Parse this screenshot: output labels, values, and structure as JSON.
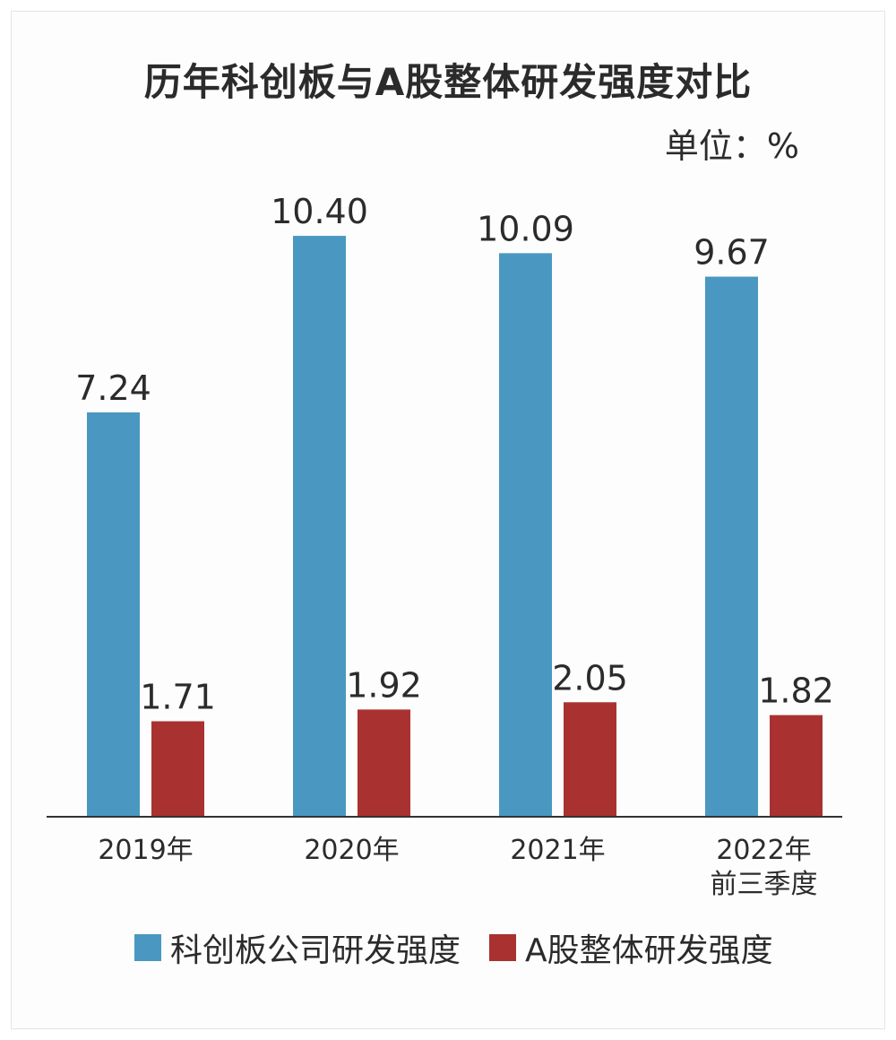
{
  "chart_data": {
    "type": "bar",
    "title": "历年科创板与A股整体研发强度对比",
    "unit_label": "单位：%",
    "categories": [
      "2019年",
      "2020年",
      "2021年",
      "2022年\n前三季度"
    ],
    "series": [
      {
        "name": "科创板公司研发强度",
        "values": [
          7.24,
          10.4,
          10.09,
          9.67
        ],
        "labels": [
          "7.24",
          "10.40",
          "10.09",
          "9.67"
        ],
        "color": "#4a98c1"
      },
      {
        "name": "A股整体研发强度",
        "values": [
          1.71,
          1.92,
          2.05,
          1.82
        ],
        "labels": [
          "1.71",
          "1.92",
          "2.05",
          "1.82"
        ],
        "color": "#a93230"
      }
    ],
    "ylim": [
      0,
      11
    ],
    "grid": false,
    "legend_position": "bottom"
  }
}
